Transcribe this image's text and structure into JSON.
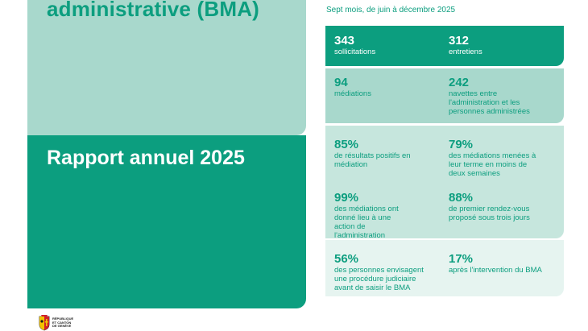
{
  "header": {
    "title_top": "administrative (BMA)",
    "title_bottom": "Rapport annuel 2025",
    "period": "Sept mois, de juin à décembre 2025"
  },
  "stats": [
    {
      "value": "343",
      "label": "sollicitations"
    },
    {
      "value": "312",
      "label": "entretiens"
    },
    {
      "value": "94",
      "label": "médiations"
    },
    {
      "value": "242",
      "label": "navettes entre l'administration et les personnes administrées"
    },
    {
      "value": "85%",
      "label": "de résultats positifs en médiation"
    },
    {
      "value": "79%",
      "label": "des médiations menées à leur terme en moins de deux semaines"
    },
    {
      "value": "99%",
      "label": "des médiations ont donné lieu à une action de l'administration"
    },
    {
      "value": "88%",
      "label": "de premier rendez-vous proposé sous trois jours"
    },
    {
      "value": "56%",
      "label": "des personnes envisagent une procédure judiciaire avant de saisir le BMA"
    },
    {
      "value": "17%",
      "label": "après l'intervention du BMA"
    }
  ],
  "logo": {
    "text_lines": [
      "RÉPUBLIQUE",
      "ET CANTON",
      "DE GENÈVE"
    ]
  },
  "colors": {
    "teal": "#0c9e7f",
    "light_teal": "#a8d8cc",
    "pale_teal": "#c6e6dd",
    "palest_teal": "#e6f4f0"
  }
}
